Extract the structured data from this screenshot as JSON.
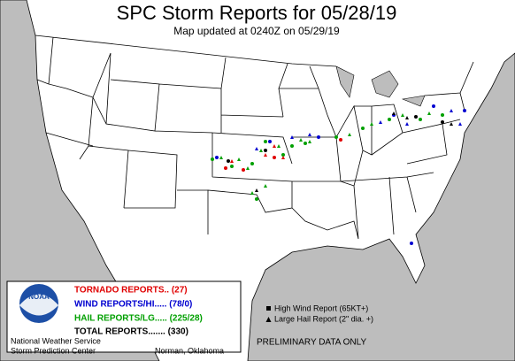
{
  "header": {
    "title": "SPC Storm Reports for 05/28/19",
    "subtitle": "Map updated at 0240Z on 05/29/19"
  },
  "legend": {
    "logo": "NOAA",
    "tornado": "TORNADO REPORTS.. (27)",
    "wind": "WIND REPORTS/HI..... (78/0)",
    "hail": "HAIL REPORTS/LG..... (225/28)",
    "total": "TOTAL REPORTS....... (330)",
    "high_wind": "High Wind Report (65KT+)",
    "large_hail": "Large Hail Report (2\" dia. +)",
    "preliminary": "PRELIMINARY DATA ONLY",
    "agency": "National Weather Service",
    "center": "Storm Prediction Center",
    "location": "Norman, Oklahoma"
  }
}
